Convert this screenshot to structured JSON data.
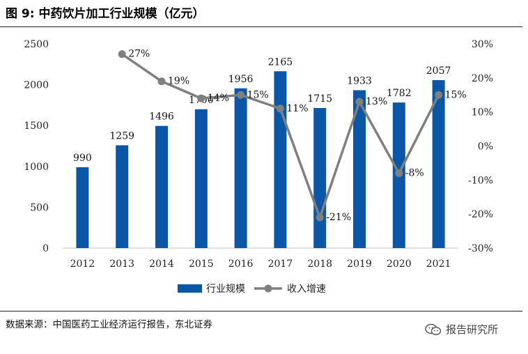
{
  "figure": {
    "title": "图 9:  中药饮片加工行业规模（亿元）",
    "source": "数据来源：中国医药工业经济运行报告，东北证券",
    "watermark": "报告研究所"
  },
  "colors": {
    "bar": "#0a57a8",
    "line": "#7f7f7f"
  },
  "chart_data": {
    "type": "bar",
    "categories": [
      "2012",
      "2013",
      "2014",
      "2015",
      "2016",
      "2017",
      "2018",
      "2019",
      "2020",
      "2021"
    ],
    "series": [
      {
        "name": "行业规模",
        "type": "bar",
        "axis": "left",
        "values": [
          990,
          1259,
          1496,
          1700,
          1956,
          2165,
          1715,
          1933,
          1782,
          2057
        ],
        "labels": [
          "990",
          "1259",
          "1496",
          "1700",
          "1956",
          "2165",
          "1715",
          "1933",
          "1782",
          "2057"
        ]
      },
      {
        "name": "收入增速",
        "type": "line",
        "axis": "right",
        "values": [
          null,
          27,
          19,
          14,
          15,
          11,
          -21,
          13,
          -8,
          15
        ],
        "labels": [
          "",
          "27%",
          "19%",
          "14%",
          "15%",
          "11%",
          "-21%",
          "13%",
          "-8%",
          "15%"
        ]
      }
    ],
    "y_left": {
      "range": [
        0,
        2500
      ],
      "ticks": [
        "0",
        "500",
        "1000",
        "1500",
        "2000",
        "2500"
      ]
    },
    "y_right": {
      "range": [
        -30,
        30
      ],
      "ticks": [
        "-30%",
        "-20%",
        "-10%",
        "0%",
        "10%",
        "20%",
        "30%"
      ]
    },
    "grid": false,
    "legend": "bottom-center"
  }
}
